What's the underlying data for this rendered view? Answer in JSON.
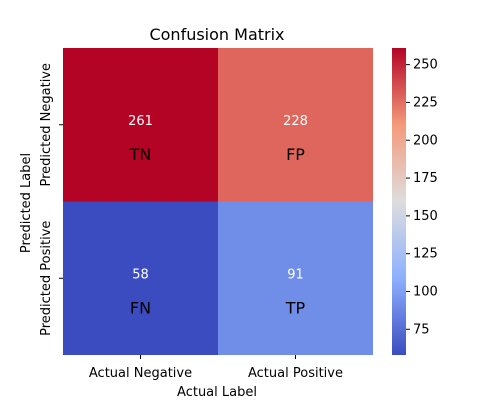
{
  "chart_data": {
    "type": "heatmap",
    "title": "Confusion Matrix",
    "xlabel": "Actual Label",
    "ylabel": "Predicted Label",
    "x_categories": [
      "Actual Negative",
      "Actual Positive"
    ],
    "y_categories": [
      "Predicted Negative",
      "Predicted Positive"
    ],
    "values": [
      [
        261,
        228
      ],
      [
        58,
        91
      ]
    ],
    "cell_labels": [
      [
        "TN",
        "FP"
      ],
      [
        "FN",
        "TP"
      ]
    ],
    "colormap": "coolwarm",
    "colorbar": {
      "range": [
        58,
        261
      ],
      "ticks": [
        75,
        100,
        125,
        150,
        175,
        200,
        225,
        250
      ]
    },
    "grid": false
  }
}
